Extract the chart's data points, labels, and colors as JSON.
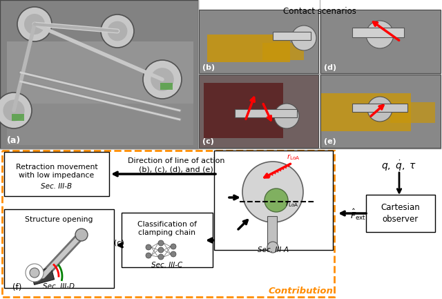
{
  "fig_width": 6.4,
  "fig_height": 4.33,
  "dpi": 100,
  "bg_color": "#ffffff",
  "orange_dashed_color": "#FF8C00",
  "contact_scenarios_title": "Contact scenarios",
  "label_a": "(a)",
  "label_b": "(b)",
  "label_c_photo": "(c)",
  "label_d": "(d)",
  "label_e": "(e)",
  "label_f": "(f)",
  "retraction_line1": "Retraction movement",
  "retraction_line2": "with low impedance",
  "retraction_sec": "Sec. III-B",
  "direction_text": "Direction of line of action",
  "direction_sub": "(b), (c), (d), and (e)",
  "classification_line1": "Classification of",
  "classification_line2": "clamping chain",
  "classification_sec": "Sec. III-C",
  "structure_text": "Structure opening",
  "structure_sec": "Sec. III-D",
  "sec_iiia": "Sec. III-A",
  "contribution": "Contribution",
  "cartesian_text": "Cartesian\nobserver",
  "label_c_arrow": "(c)"
}
